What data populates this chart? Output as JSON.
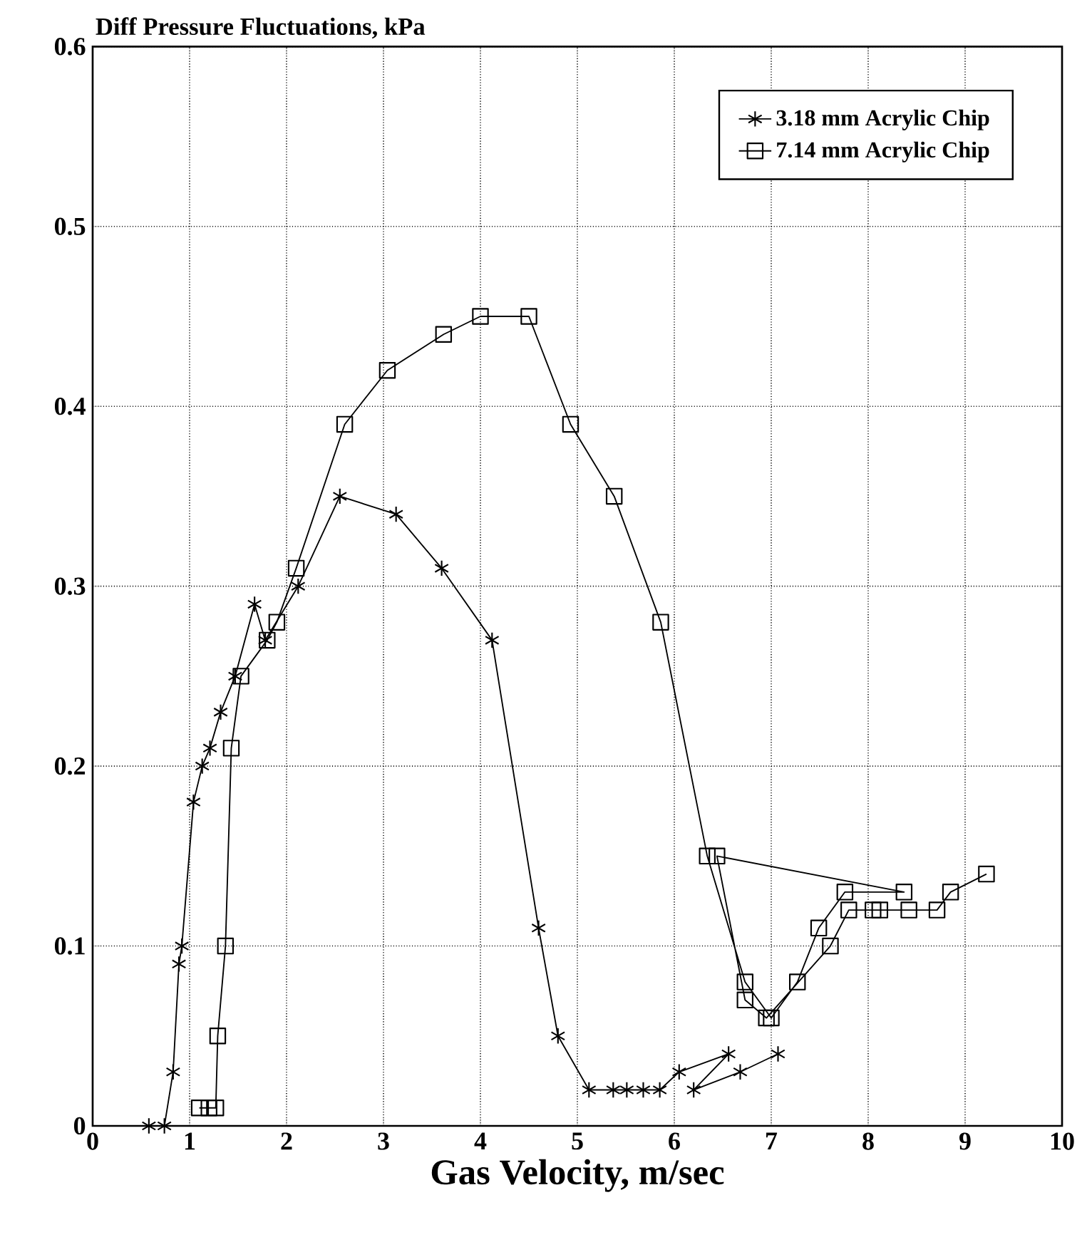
{
  "chart_data": {
    "type": "line",
    "title": "Diff Pressure Fluctuations, kPa",
    "xlabel": "Gas Velocity, m/sec",
    "xlim": [
      0,
      10
    ],
    "xticks": [
      0,
      1,
      2,
      3,
      4,
      5,
      6,
      7,
      8,
      9,
      10
    ],
    "ylim": [
      0,
      0.6
    ],
    "yticks": [
      0,
      0.1,
      0.2,
      0.3,
      0.4,
      0.5,
      0.6
    ],
    "grid": true,
    "legend": "top right",
    "line_style": "solid",
    "series": [
      {
        "name": "3.18 mm Acrylic Chip",
        "color": "#000000",
        "marker": "cross",
        "x": [
          0.58,
          0.74,
          0.83,
          0.89,
          0.92,
          1.04,
          1.13,
          1.21,
          1.32,
          1.47,
          1.67,
          1.78,
          2.12,
          2.55,
          3.13,
          3.6,
          4.12,
          4.6,
          4.8,
          5.12,
          5.37,
          5.51,
          5.68,
          5.85,
          6.05,
          6.56,
          6.2,
          6.68,
          7.07
        ],
        "values": [
          0,
          0,
          0.03,
          0.09,
          0.1,
          0.18,
          0.2,
          0.21,
          0.23,
          0.25,
          0.29,
          0.27,
          0.3,
          0.35,
          0.34,
          0.31,
          0.27,
          0.11,
          0.05,
          0.02,
          0.02,
          0.02,
          0.02,
          0.02,
          0.03,
          0.04,
          0.02,
          0.03,
          0.04
        ]
      },
      {
        "name": "7.14 mm Acrylic Chip",
        "color": "#000000",
        "marker": "square",
        "x": [
          1.1,
          1.2,
          1.27,
          1.29,
          1.37,
          1.43,
          1.53,
          1.8,
          1.9,
          2.1,
          2.6,
          3.04,
          3.62,
          4.0,
          4.5,
          4.93,
          5.38,
          5.86,
          6.34,
          6.73,
          7.0,
          7.27,
          7.49,
          7.76,
          8.37,
          6.44,
          6.73,
          6.95,
          7.61,
          7.8,
          8.05,
          8.12,
          8.42,
          8.71,
          8.85,
          9.22
        ],
        "values": [
          0.01,
          0.01,
          0.01,
          0.05,
          0.1,
          0.21,
          0.25,
          0.27,
          0.28,
          0.31,
          0.39,
          0.42,
          0.44,
          0.45,
          0.45,
          0.39,
          0.35,
          0.28,
          0.15,
          0.08,
          0.06,
          0.08,
          0.11,
          0.13,
          0.13,
          0.15,
          0.07,
          0.06,
          0.1,
          0.12,
          0.12,
          0.12,
          0.12,
          0.12,
          0.13,
          0.14
        ]
      }
    ]
  }
}
